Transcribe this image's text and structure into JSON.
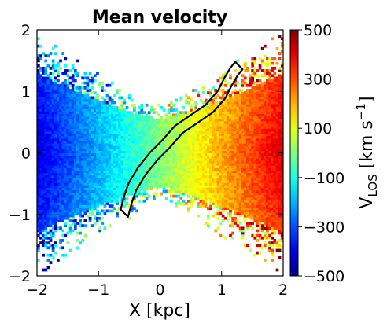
{
  "chart_data": {
    "type": "heatmap",
    "title": "Mean velocity",
    "xlabel": "X [kpc]",
    "ylabel": "",
    "xlim": [
      -2,
      2
    ],
    "ylim": [
      -2,
      2
    ],
    "x_ticks": [
      "−2",
      "−1",
      "0",
      "1",
      "2"
    ],
    "y_ticks": [
      "−2",
      "−1",
      "0",
      "1",
      "2"
    ],
    "x_tick_values": [
      -2,
      -1,
      0,
      1,
      2
    ],
    "y_tick_values": [
      -2,
      -1,
      0,
      1,
      2
    ],
    "colorbar": {
      "label_main": "V",
      "label_sub": "LOS",
      "label_unit": " [km s",
      "label_exp": "−1",
      "label_close": "]",
      "range": [
        -500,
        500
      ],
      "colormap": "jet",
      "tick_values": [
        500,
        300,
        100,
        -100,
        -300,
        -500
      ],
      "tick_labels": [
        "500",
        "300",
        "100",
        "−100",
        "−300",
        "−500"
      ]
    },
    "velocity_field": {
      "description_free": true,
      "gradient_axis": "x",
      "value_at_x_minus2": -420,
      "value_at_x_0": 0,
      "value_at_x_plus2": 420
    },
    "contour_line": {
      "color": "#000000",
      "points": [
        [
          -0.58,
          -0.98
        ],
        [
          -0.52,
          -0.75
        ],
        [
          -0.45,
          -0.55
        ],
        [
          -0.3,
          -0.3
        ],
        [
          -0.1,
          -0.05
        ],
        [
          0.1,
          0.15
        ],
        [
          0.3,
          0.38
        ],
        [
          0.55,
          0.55
        ],
        [
          0.8,
          0.72
        ],
        [
          1.0,
          0.95
        ],
        [
          1.1,
          1.15
        ],
        [
          1.2,
          1.32
        ],
        [
          1.28,
          1.42
        ]
      ]
    }
  }
}
